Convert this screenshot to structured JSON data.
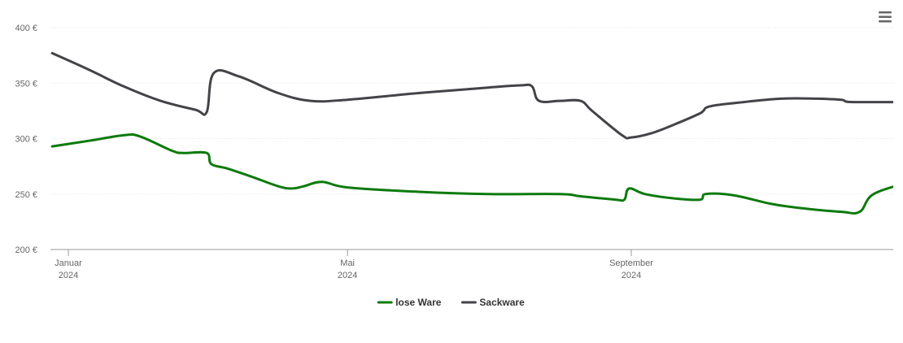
{
  "chart_data": {
    "type": "line",
    "title": "",
    "xlabel": "",
    "ylabel": "",
    "x_range": [
      "2024-01-01",
      "2024-12-31"
    ],
    "ylim": [
      200,
      400
    ],
    "y_ticks": [
      {
        "value": 200,
        "label": "200 €"
      },
      {
        "value": 250,
        "label": "250 €"
      },
      {
        "value": 300,
        "label": "300 €"
      },
      {
        "value": 350,
        "label": "350 €"
      },
      {
        "value": 400,
        "label": "400 €"
      }
    ],
    "x_ticks": [
      {
        "date": "2024-01-01",
        "month": "Januar",
        "year": "2024"
      },
      {
        "date": "2024-05-01",
        "month": "Mai",
        "year": "2024"
      },
      {
        "date": "2024-09-01",
        "month": "September",
        "year": "2024"
      }
    ],
    "grid": true,
    "legend_position": "bottom-center",
    "series": [
      {
        "name": "lose Ware",
        "color": "#0d7a0d",
        "points": [
          [
            "2023-12-25",
            293
          ],
          [
            "2024-01-10",
            298
          ],
          [
            "2024-01-25",
            303
          ],
          [
            "2024-02-01",
            302
          ],
          [
            "2024-02-15",
            289
          ],
          [
            "2024-02-20",
            287
          ],
          [
            "2024-03-01",
            287
          ],
          [
            "2024-03-03",
            277
          ],
          [
            "2024-03-10",
            273
          ],
          [
            "2024-03-20",
            266
          ],
          [
            "2024-04-01",
            257
          ],
          [
            "2024-04-07",
            255
          ],
          [
            "2024-04-12",
            257
          ],
          [
            "2024-04-20",
            261
          ],
          [
            "2024-05-01",
            256
          ],
          [
            "2024-06-01",
            252
          ],
          [
            "2024-07-01",
            250
          ],
          [
            "2024-08-01",
            250
          ],
          [
            "2024-08-10",
            248
          ],
          [
            "2024-08-25",
            245
          ],
          [
            "2024-08-29",
            245
          ],
          [
            "2024-08-31",
            255
          ],
          [
            "2024-09-07",
            250
          ],
          [
            "2024-09-20",
            246
          ],
          [
            "2024-10-01",
            245
          ],
          [
            "2024-10-03",
            250
          ],
          [
            "2024-10-15",
            249
          ],
          [
            "2024-11-01",
            241
          ],
          [
            "2024-11-15",
            237
          ],
          [
            "2024-12-01",
            234
          ],
          [
            "2024-12-09",
            234
          ],
          [
            "2024-12-15",
            250
          ],
          [
            "2024-12-31",
            261
          ]
        ]
      },
      {
        "name": "Sackware",
        "color": "#434348",
        "points": [
          [
            "2023-12-25",
            377
          ],
          [
            "2024-01-10",
            362
          ],
          [
            "2024-01-25",
            347
          ],
          [
            "2024-02-10",
            334
          ],
          [
            "2024-02-25",
            326
          ],
          [
            "2024-03-01",
            324
          ],
          [
            "2024-03-04",
            359
          ],
          [
            "2024-03-15",
            356
          ],
          [
            "2024-04-01",
            341
          ],
          [
            "2024-04-15",
            334
          ],
          [
            "2024-05-01",
            335
          ],
          [
            "2024-06-01",
            341
          ],
          [
            "2024-07-01",
            346
          ],
          [
            "2024-07-15",
            348
          ],
          [
            "2024-07-20",
            347
          ],
          [
            "2024-07-23",
            334
          ],
          [
            "2024-08-01",
            334
          ],
          [
            "2024-08-10",
            334
          ],
          [
            "2024-08-15",
            325
          ],
          [
            "2024-08-28",
            303
          ],
          [
            "2024-09-01",
            301
          ],
          [
            "2024-09-10",
            305
          ],
          [
            "2024-09-20",
            313
          ],
          [
            "2024-10-01",
            323
          ],
          [
            "2024-10-05",
            329
          ],
          [
            "2024-10-20",
            333
          ],
          [
            "2024-11-05",
            336
          ],
          [
            "2024-11-20",
            336
          ],
          [
            "2024-12-01",
            335
          ],
          [
            "2024-12-05",
            333
          ],
          [
            "2024-12-31",
            333
          ]
        ]
      }
    ]
  },
  "menu": {
    "icon": "hamburger-menu-icon"
  }
}
